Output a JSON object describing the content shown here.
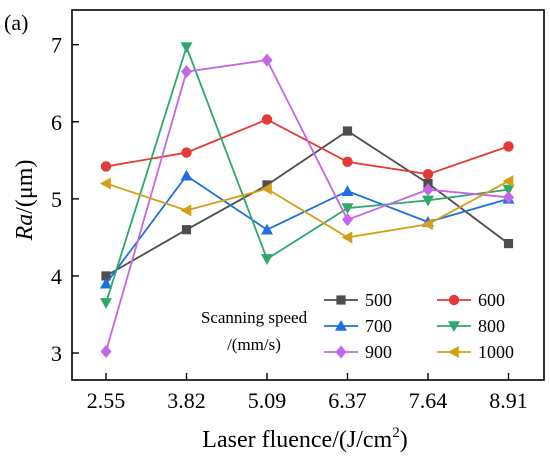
{
  "panel_label": "(a)",
  "chart_data": {
    "type": "line",
    "title": "",
    "xlabel_main": "Laser fluence/(J/cm",
    "xlabel_sup": "2",
    "xlabel_end": ")",
    "ylabel_italic": "Ra",
    "ylabel_rest": "/(μm)",
    "categories": [
      "2.55",
      "3.82",
      "5.09",
      "6.37",
      "7.64",
      "8.91"
    ],
    "yticks": [
      "3",
      "4",
      "5",
      "6",
      "7"
    ],
    "ylim": [
      2.65,
      7.45
    ],
    "legend_title_line1": "Scanning speed",
    "legend_title_line2": "/(mm/s)",
    "legend_placement": "bottom-right",
    "grid": false,
    "series": [
      {
        "name": "500",
        "color": "#4d4d4d",
        "marker": "square",
        "values": [
          4.0,
          4.6,
          5.18,
          5.88,
          5.2,
          4.42
        ]
      },
      {
        "name": "600",
        "color": "#e53935",
        "marker": "circle",
        "values": [
          5.42,
          5.6,
          6.03,
          5.48,
          5.32,
          5.68
        ]
      },
      {
        "name": "700",
        "color": "#1e6fe0",
        "marker": "triangle-up",
        "values": [
          3.9,
          5.3,
          4.6,
          5.1,
          4.7,
          5.0
        ]
      },
      {
        "name": "800",
        "color": "#2ea86a",
        "marker": "triangle-down",
        "values": [
          3.65,
          6.97,
          4.22,
          4.88,
          4.98,
          5.12
        ]
      },
      {
        "name": "900",
        "color": "#c466e8",
        "marker": "diamond",
        "values": [
          3.02,
          6.65,
          6.8,
          4.73,
          5.12,
          5.02
        ]
      },
      {
        "name": "1000",
        "color": "#d4a017",
        "marker": "triangle-left",
        "values": [
          5.2,
          4.85,
          5.13,
          4.5,
          4.67,
          5.23
        ]
      }
    ]
  }
}
